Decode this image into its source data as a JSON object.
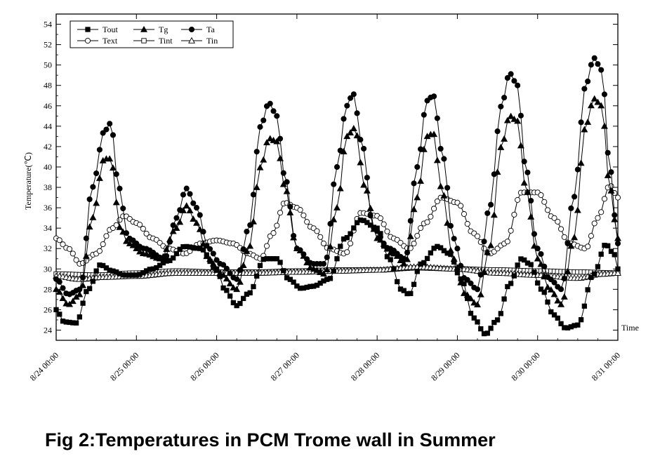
{
  "caption": "Fig 2:Temperatures in PCM Trome wall in Summer",
  "chart_data": {
    "type": "line",
    "title": "",
    "xlabel": "Time",
    "ylabel": "Temperature(℃)",
    "ylim": [
      23,
      55
    ],
    "yticks": [
      24,
      26,
      28,
      30,
      32,
      34,
      36,
      38,
      40,
      42,
      44,
      46,
      48,
      50,
      52,
      54
    ],
    "xlim": [
      0,
      7
    ],
    "x_unit": "days since 8/24 00:00",
    "xticks": [
      {
        "x": 0,
        "label": "8/24 00:00"
      },
      {
        "x": 1,
        "label": "8/25 00:00"
      },
      {
        "x": 2,
        "label": "8/26 00:00"
      },
      {
        "x": 3,
        "label": "8/27 00:00"
      },
      {
        "x": 4,
        "label": "8/28 00:00"
      },
      {
        "x": 5,
        "label": "8/29 00:00"
      },
      {
        "x": 6,
        "label": "8/30 00:00"
      },
      {
        "x": 7,
        "label": "8/31 00:00"
      }
    ],
    "grid": false,
    "legend_position": "top-left",
    "series": [
      {
        "name": "Tout",
        "marker": "filled-square",
        "points": [
          [
            0,
            26
          ],
          [
            0.1,
            24.8
          ],
          [
            0.25,
            24.7
          ],
          [
            0.4,
            28
          ],
          [
            0.55,
            30.4
          ],
          [
            0.7,
            29.8
          ],
          [
            0.85,
            29.4
          ],
          [
            1.0,
            29.4
          ],
          [
            1.2,
            30
          ],
          [
            1.4,
            30.8
          ],
          [
            1.6,
            32.2
          ],
          [
            1.8,
            32
          ],
          [
            2.0,
            30
          ],
          [
            2.1,
            28
          ],
          [
            2.25,
            26.4
          ],
          [
            2.4,
            27.6
          ],
          [
            2.6,
            31
          ],
          [
            2.75,
            31
          ],
          [
            2.9,
            29
          ],
          [
            3.05,
            28.1
          ],
          [
            3.2,
            28.3
          ],
          [
            3.4,
            29
          ],
          [
            3.6,
            33
          ],
          [
            3.8,
            34.8
          ],
          [
            4.0,
            34
          ],
          [
            4.15,
            31
          ],
          [
            4.3,
            28
          ],
          [
            4.4,
            27.5
          ],
          [
            4.55,
            30.5
          ],
          [
            4.75,
            32.2
          ],
          [
            4.9,
            31.5
          ],
          [
            5.05,
            29
          ],
          [
            5.2,
            25.2
          ],
          [
            5.35,
            23.6
          ],
          [
            5.5,
            25
          ],
          [
            5.65,
            28.5
          ],
          [
            5.8,
            31
          ],
          [
            5.9,
            30.5
          ],
          [
            6.05,
            28
          ],
          [
            6.2,
            25.5
          ],
          [
            6.35,
            24.2
          ],
          [
            6.5,
            24.5
          ],
          [
            6.7,
            29.5
          ],
          [
            6.85,
            32.4
          ],
          [
            6.95,
            31.5
          ],
          [
            7.0,
            30
          ]
        ]
      },
      {
        "name": "Tg",
        "marker": "filled-triangle",
        "points": [
          [
            0,
            28
          ],
          [
            0.15,
            26.5
          ],
          [
            0.3,
            27.5
          ],
          [
            0.45,
            35
          ],
          [
            0.6,
            40.8
          ],
          [
            0.68,
            40.8
          ],
          [
            0.8,
            34
          ],
          [
            0.9,
            32.5
          ],
          [
            1.1,
            31.5
          ],
          [
            1.3,
            31
          ],
          [
            1.5,
            34
          ],
          [
            1.62,
            36.2
          ],
          [
            1.75,
            34.5
          ],
          [
            1.9,
            31
          ],
          [
            2.05,
            29.5
          ],
          [
            2.25,
            28
          ],
          [
            2.4,
            32
          ],
          [
            2.55,
            40
          ],
          [
            2.65,
            42.8
          ],
          [
            2.75,
            42.5
          ],
          [
            2.85,
            38
          ],
          [
            3.0,
            32
          ],
          [
            3.2,
            30
          ],
          [
            3.35,
            29.5
          ],
          [
            3.5,
            36
          ],
          [
            3.62,
            43
          ],
          [
            3.72,
            43.8
          ],
          [
            3.85,
            38
          ],
          [
            4.0,
            33
          ],
          [
            4.2,
            31.5
          ],
          [
            4.35,
            30.5
          ],
          [
            4.5,
            37
          ],
          [
            4.62,
            43
          ],
          [
            4.7,
            43.3
          ],
          [
            4.8,
            38
          ],
          [
            4.95,
            31
          ],
          [
            5.1,
            27.5
          ],
          [
            5.25,
            26.5
          ],
          [
            5.4,
            32
          ],
          [
            5.55,
            42
          ],
          [
            5.65,
            45
          ],
          [
            5.75,
            44.5
          ],
          [
            5.85,
            38
          ],
          [
            6.0,
            31
          ],
          [
            6.15,
            28
          ],
          [
            6.3,
            26.5
          ],
          [
            6.45,
            33
          ],
          [
            6.6,
            44
          ],
          [
            6.7,
            46.7
          ],
          [
            6.8,
            46
          ],
          [
            6.9,
            38
          ],
          [
            7.0,
            33
          ]
        ]
      },
      {
        "name": "Ta",
        "marker": "filled-circle",
        "points": [
          [
            0,
            29
          ],
          [
            0.15,
            27.5
          ],
          [
            0.3,
            28
          ],
          [
            0.45,
            38
          ],
          [
            0.6,
            43.5
          ],
          [
            0.68,
            44.3
          ],
          [
            0.78,
            38
          ],
          [
            0.9,
            33
          ],
          [
            1.1,
            32
          ],
          [
            1.35,
            31
          ],
          [
            1.5,
            35
          ],
          [
            1.62,
            37.9
          ],
          [
            1.75,
            36
          ],
          [
            1.9,
            32
          ],
          [
            2.05,
            30.5
          ],
          [
            2.25,
            29
          ],
          [
            2.4,
            34
          ],
          [
            2.55,
            44
          ],
          [
            2.65,
            46.3
          ],
          [
            2.75,
            45
          ],
          [
            2.85,
            39
          ],
          [
            3.0,
            32
          ],
          [
            3.2,
            30.5
          ],
          [
            3.35,
            30.5
          ],
          [
            3.5,
            40
          ],
          [
            3.62,
            46
          ],
          [
            3.7,
            47.2
          ],
          [
            3.82,
            42
          ],
          [
            3.95,
            34
          ],
          [
            4.15,
            32
          ],
          [
            4.35,
            31
          ],
          [
            4.5,
            40
          ],
          [
            4.62,
            46.5
          ],
          [
            4.7,
            47
          ],
          [
            4.82,
            41
          ],
          [
            4.95,
            33
          ],
          [
            5.1,
            29
          ],
          [
            5.25,
            28
          ],
          [
            5.4,
            36
          ],
          [
            5.55,
            46
          ],
          [
            5.65,
            49.2
          ],
          [
            5.75,
            48
          ],
          [
            5.85,
            40
          ],
          [
            6.0,
            32
          ],
          [
            6.15,
            29
          ],
          [
            6.3,
            28
          ],
          [
            6.45,
            37
          ],
          [
            6.6,
            48
          ],
          [
            6.7,
            50.7
          ],
          [
            6.8,
            49.5
          ],
          [
            6.9,
            40
          ],
          [
            7.0,
            32.5
          ]
        ]
      },
      {
        "name": "Text",
        "marker": "open-circle",
        "points": [
          [
            0,
            33
          ],
          [
            0.15,
            32
          ],
          [
            0.3,
            30.5
          ],
          [
            0.5,
            31.5
          ],
          [
            0.7,
            34
          ],
          [
            0.85,
            35.2
          ],
          [
            1.0,
            34.5
          ],
          [
            1.2,
            33
          ],
          [
            1.4,
            32
          ],
          [
            1.6,
            31.5
          ],
          [
            1.8,
            32.5
          ],
          [
            2.0,
            32.8
          ],
          [
            2.2,
            32.5
          ],
          [
            2.4,
            31.5
          ],
          [
            2.55,
            31
          ],
          [
            2.7,
            33.5
          ],
          [
            2.85,
            36.5
          ],
          [
            3.0,
            36
          ],
          [
            3.2,
            34
          ],
          [
            3.4,
            32
          ],
          [
            3.6,
            31.5
          ],
          [
            3.8,
            35.5
          ],
          [
            4.0,
            35.2
          ],
          [
            4.2,
            33
          ],
          [
            4.4,
            32
          ],
          [
            4.6,
            34.5
          ],
          [
            4.8,
            37
          ],
          [
            5.0,
            36.5
          ],
          [
            5.2,
            33.5
          ],
          [
            5.4,
            31.5
          ],
          [
            5.6,
            32.5
          ],
          [
            5.8,
            37.5
          ],
          [
            6.0,
            37.5
          ],
          [
            6.2,
            35
          ],
          [
            6.4,
            32.5
          ],
          [
            6.6,
            32
          ],
          [
            6.75,
            35
          ],
          [
            6.9,
            38.2
          ],
          [
            7.0,
            37
          ]
        ]
      },
      {
        "name": "Tint",
        "marker": "open-square",
        "points": [
          [
            0,
            29.5
          ],
          [
            0.5,
            29.4
          ],
          [
            1.0,
            29.6
          ],
          [
            1.5,
            29.8
          ],
          [
            2.0,
            29.7
          ],
          [
            2.5,
            29.7
          ],
          [
            3.0,
            29.8
          ],
          [
            3.5,
            29.9
          ],
          [
            4.0,
            29.9
          ],
          [
            4.5,
            30.1
          ],
          [
            5.0,
            30.0
          ],
          [
            5.5,
            29.9
          ],
          [
            6.0,
            29.8
          ],
          [
            6.5,
            29.7
          ],
          [
            7.0,
            29.6
          ]
        ]
      },
      {
        "name": "Tin",
        "marker": "open-triangle",
        "points": [
          [
            0,
            29.3
          ],
          [
            0.3,
            29
          ],
          [
            0.6,
            29.2
          ],
          [
            1.0,
            29.3
          ],
          [
            1.5,
            29.6
          ],
          [
            2.0,
            29.6
          ],
          [
            2.5,
            29.6
          ],
          [
            3.0,
            29.7
          ],
          [
            3.5,
            29.8
          ],
          [
            4.0,
            29.9
          ],
          [
            4.5,
            30.2
          ],
          [
            5.0,
            30.0
          ],
          [
            5.5,
            29.6
          ],
          [
            6.0,
            29.4
          ],
          [
            6.5,
            29.1
          ],
          [
            6.8,
            29.5
          ],
          [
            7.0,
            29.6
          ]
        ]
      }
    ]
  }
}
